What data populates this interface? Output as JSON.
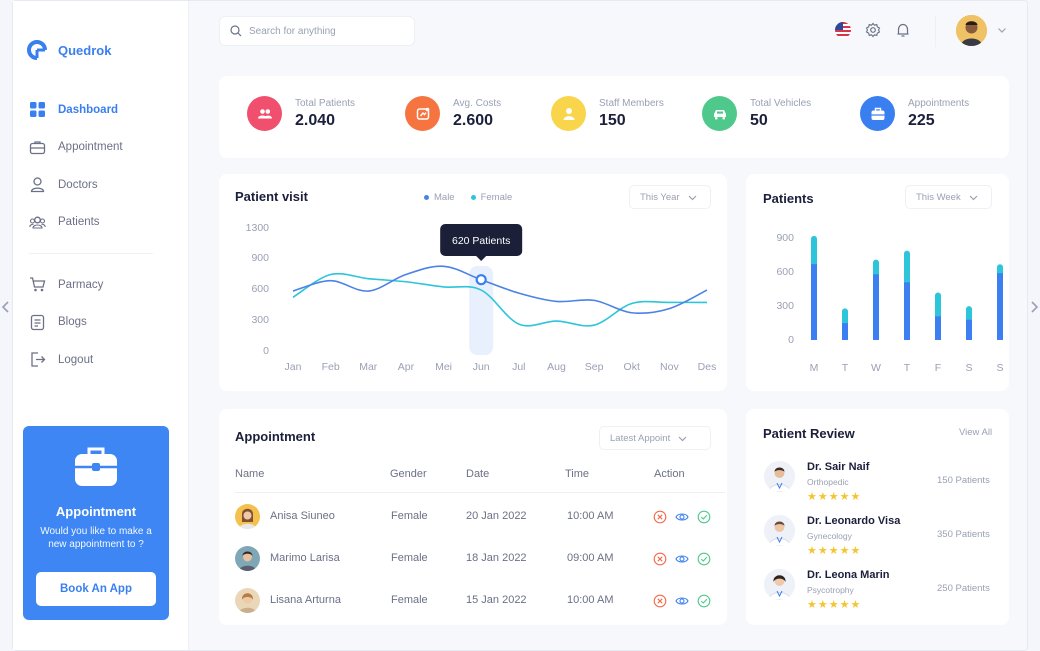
{
  "brand": {
    "name": "Quedrok"
  },
  "nav": {
    "items": [
      {
        "label": "Dashboard",
        "icon": "grid-icon",
        "active": true
      },
      {
        "label": "Appointment",
        "icon": "briefcase-icon"
      },
      {
        "label": "Doctors",
        "icon": "user-icon"
      },
      {
        "label": "Patients",
        "icon": "users-icon"
      },
      {
        "label": "Parmacy",
        "icon": "cart-icon"
      },
      {
        "label": "Blogs",
        "icon": "document-icon"
      },
      {
        "label": "Logout",
        "icon": "logout-icon"
      }
    ]
  },
  "promo": {
    "title": "Appointment",
    "text": "Would you like to make a new appointment to ?",
    "button": "Book An App"
  },
  "header": {
    "search_placeholder": "Search for anything"
  },
  "stats": [
    {
      "label": "Total Patients",
      "value": "2.040",
      "color": "#f0506e"
    },
    {
      "label": "Avg. Costs",
      "value": "2.600",
      "color": "#f5743f"
    },
    {
      "label": "Staff Members",
      "value": "150",
      "color": "#f8d54a"
    },
    {
      "label": "Total Vehicles",
      "value": "50",
      "color": "#4fc98b"
    },
    {
      "label": "Appointments",
      "value": "225",
      "color": "#3a7ff0"
    }
  ],
  "visit": {
    "title": "Patient visit",
    "legend_male": "Male",
    "legend_female": "Female",
    "filter": "This Year",
    "tooltip": "620 Patients"
  },
  "patients": {
    "title": "Patients",
    "filter": "This Week"
  },
  "chart_data": [
    {
      "type": "line",
      "x": [
        "Jan",
        "Feb",
        "Mar",
        "Apr",
        "Mei",
        "Jun",
        "Jul",
        "Aug",
        "Sep",
        "Okt",
        "Nov",
        "Des"
      ],
      "ylim": [
        0,
        1300
      ],
      "yticks": [
        0,
        300,
        600,
        900,
        1300
      ],
      "series": [
        {
          "name": "Male",
          "color": "#4a82e6",
          "values": [
            580,
            680,
            580,
            740,
            820,
            690,
            560,
            480,
            490,
            370,
            410,
            590
          ]
        },
        {
          "name": "Female",
          "color": "#2cc5d9",
          "values": [
            520,
            740,
            700,
            670,
            620,
            590,
            260,
            290,
            250,
            460,
            470,
            470
          ]
        }
      ]
    },
    {
      "type": "bar",
      "categories": [
        "M",
        "T",
        "W",
        "T",
        "F",
        "S",
        "S"
      ],
      "ylim": [
        0,
        900
      ],
      "yticks": [
        0,
        300,
        600,
        900
      ],
      "series": [
        {
          "color": "#3b7ff2",
          "values": [
            660,
            140,
            570,
            500,
            200,
            170,
            580
          ]
        },
        {
          "color": "#2cc5d9",
          "values": [
            250,
            130,
            130,
            280,
            210,
            120,
            80
          ]
        }
      ]
    }
  ],
  "appointment": {
    "title": "Appointment",
    "filter": "Latest Appoint",
    "columns": [
      "Name",
      "Gender",
      "Date",
      "Time",
      "Action"
    ],
    "rows": [
      {
        "name": "Anisa Siuneo",
        "gender": "Female",
        "date": "20 Jan 2022",
        "time": "10:00 AM"
      },
      {
        "name": "Marimo Larisa",
        "gender": "Female",
        "date": "18 Jan 2022",
        "time": "09:00 AM"
      },
      {
        "name": "Lisana Arturna",
        "gender": "Female",
        "date": "15 Jan 2022",
        "time": "10:00 AM"
      }
    ]
  },
  "review": {
    "title": "Patient Review",
    "view_all": "View All",
    "stars": "★★★★★",
    "items": [
      {
        "name": "Dr. Sair Naif",
        "spec": "Orthopedic",
        "count": "150 Patients"
      },
      {
        "name": "Dr. Leonardo Visa",
        "spec": "Gynecology",
        "count": "350 Patients"
      },
      {
        "name": "Dr. Leona Marin",
        "spec": "Psycotrophy",
        "count": "250 Patients"
      }
    ]
  }
}
